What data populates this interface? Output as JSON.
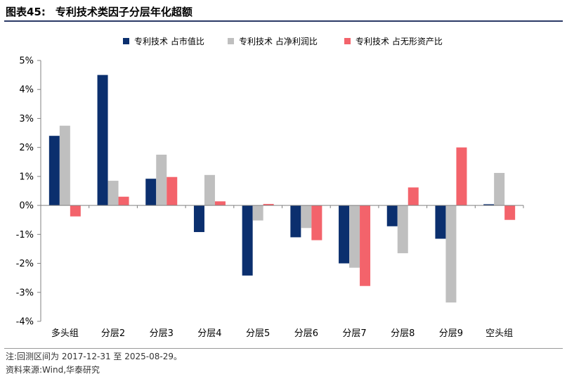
{
  "figure": {
    "number": "图表45:",
    "title": "专利技术类因子分层年化超额"
  },
  "notes": {
    "note": "注:回测区间为 2017-12-31 至 2025-08-29。",
    "source": "资料来源:Wind,华泰研究"
  },
  "colors": {
    "series": [
      "#0b2f6e",
      "#bfbfbf",
      "#f3636b"
    ],
    "rule": "#2b3a67"
  },
  "chart_data": {
    "type": "bar",
    "categories": [
      "多头组",
      "分层2",
      "分层3",
      "分层4",
      "分层5",
      "分层6",
      "分层7",
      "分层8",
      "分层9",
      "空头组"
    ],
    "series": [
      {
        "name": "专利技术 占市值比",
        "values": [
          2.4,
          4.5,
          0.92,
          -0.92,
          -2.42,
          -1.1,
          -2.0,
          -0.72,
          -1.15,
          0.04
        ]
      },
      {
        "name": "专利技术 占净利润比",
        "values": [
          2.75,
          0.85,
          1.75,
          1.05,
          -0.52,
          -0.78,
          -2.15,
          -1.65,
          -3.35,
          1.12
        ]
      },
      {
        "name": "专利技术 占无形资产比",
        "values": [
          -0.38,
          0.3,
          0.98,
          0.14,
          0.05,
          -1.2,
          -2.78,
          0.62,
          2.0,
          -0.5
        ]
      }
    ],
    "y_ticks": [
      "5%",
      "4%",
      "3%",
      "2%",
      "1%",
      "0%",
      "-1%",
      "-2%",
      "-3%",
      "-4%"
    ],
    "ylim": [
      -4,
      5
    ],
    "grid": false,
    "legend_position": "top"
  }
}
